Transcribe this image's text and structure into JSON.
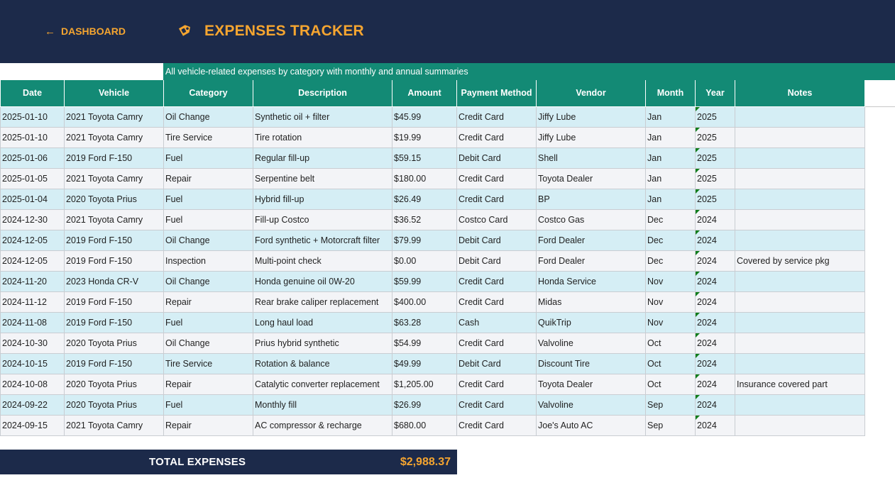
{
  "header": {
    "back_label": "DASHBOARD",
    "title": "EXPENSES TRACKER",
    "subtitle": "All vehicle-related expenses by category with monthly and annual summaries"
  },
  "colors": {
    "navy": "#1c2a4a",
    "accent_orange": "#f5a530",
    "teal": "#138a75",
    "row_blue": "#d5eef5",
    "row_gray": "#f3f4f7"
  },
  "icons": {
    "back": "left-arrow-icon",
    "title": "fuel-tag-icon"
  },
  "table": {
    "columns": [
      "Date",
      "Vehicle",
      "Category",
      "Description",
      "Amount",
      "Payment Method",
      "Vendor",
      "Month",
      "Year",
      "Notes"
    ],
    "rows": [
      [
        "2025-01-10",
        "2021 Toyota Camry",
        "Oil Change",
        "Synthetic oil + filter",
        "$45.99",
        "Credit Card",
        "Jiffy Lube",
        "Jan",
        "2025",
        ""
      ],
      [
        "2025-01-10",
        "2021 Toyota Camry",
        "Tire Service",
        "Tire rotation",
        "$19.99",
        "Credit Card",
        "Jiffy Lube",
        "Jan",
        "2025",
        ""
      ],
      [
        "2025-01-06",
        "2019 Ford F-150",
        "Fuel",
        "Regular fill-up",
        "$59.15",
        "Debit Card",
        "Shell",
        "Jan",
        "2025",
        ""
      ],
      [
        "2025-01-05",
        "2021 Toyota Camry",
        "Repair",
        "Serpentine belt",
        "$180.00",
        "Credit Card",
        "Toyota Dealer",
        "Jan",
        "2025",
        ""
      ],
      [
        "2025-01-04",
        "2020 Toyota Prius",
        "Fuel",
        "Hybrid fill-up",
        "$26.49",
        "Credit Card",
        "BP",
        "Jan",
        "2025",
        ""
      ],
      [
        "2024-12-30",
        "2021 Toyota Camry",
        "Fuel",
        "Fill-up Costco",
        "$36.52",
        "Costco Card",
        "Costco Gas",
        "Dec",
        "2024",
        ""
      ],
      [
        "2024-12-05",
        "2019 Ford F-150",
        "Oil Change",
        "Ford synthetic + Motorcraft filter",
        "$79.99",
        "Debit Card",
        "Ford Dealer",
        "Dec",
        "2024",
        ""
      ],
      [
        "2024-12-05",
        "2019 Ford F-150",
        "Inspection",
        "Multi-point check",
        "$0.00",
        "Debit Card",
        "Ford Dealer",
        "Dec",
        "2024",
        "Covered by service pkg"
      ],
      [
        "2024-11-20",
        "2023 Honda CR-V",
        "Oil Change",
        "Honda genuine oil 0W-20",
        "$59.99",
        "Credit Card",
        "Honda Service",
        "Nov",
        "2024",
        ""
      ],
      [
        "2024-11-12",
        "2019 Ford F-150",
        "Repair",
        "Rear brake caliper replacement",
        "$400.00",
        "Credit Card",
        "Midas",
        "Nov",
        "2024",
        ""
      ],
      [
        "2024-11-08",
        "2019 Ford F-150",
        "Fuel",
        "Long haul load",
        "$63.28",
        "Cash",
        "QuikTrip",
        "Nov",
        "2024",
        ""
      ],
      [
        "2024-10-30",
        "2020 Toyota Prius",
        "Oil Change",
        "Prius hybrid synthetic",
        "$54.99",
        "Credit Card",
        "Valvoline",
        "Oct",
        "2024",
        ""
      ],
      [
        "2024-10-15",
        "2019 Ford F-150",
        "Tire Service",
        "Rotation & balance",
        "$49.99",
        "Debit Card",
        "Discount Tire",
        "Oct",
        "2024",
        ""
      ],
      [
        "2024-10-08",
        "2020 Toyota Prius",
        "Repair",
        "Catalytic converter replacement",
        "$1,205.00",
        "Credit Card",
        "Toyota Dealer",
        "Oct",
        "2024",
        "Insurance covered part"
      ],
      [
        "2024-09-22",
        "2020 Toyota Prius",
        "Fuel",
        "Monthly fill",
        "$26.99",
        "Credit Card",
        "Valvoline",
        "Sep",
        "2024",
        ""
      ],
      [
        "2024-09-15",
        "2021 Toyota Camry",
        "Repair",
        "AC compressor & recharge",
        "$680.00",
        "Credit Card",
        "Joe's Auto AC",
        "Sep",
        "2024",
        ""
      ]
    ]
  },
  "totals": {
    "label": "TOTAL EXPENSES",
    "value": "$2,988.37"
  }
}
